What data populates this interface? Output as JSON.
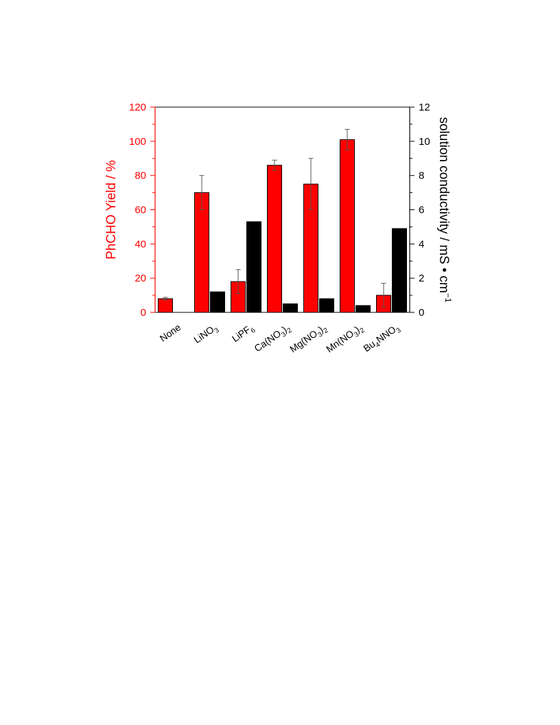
{
  "chart_data": {
    "type": "bar",
    "categories": [
      {
        "base": "None",
        "parts": [
          [
            "None",
            "n"
          ]
        ]
      },
      {
        "base": "LiNO3",
        "parts": [
          [
            "LiNO",
            "n"
          ],
          [
            "3",
            "sub"
          ]
        ]
      },
      {
        "base": "LiPF6",
        "parts": [
          [
            "LiPF",
            "n"
          ],
          [
            "6",
            "sub"
          ]
        ]
      },
      {
        "base": "Ca(NO3)2",
        "parts": [
          [
            "Ca(NO",
            "n"
          ],
          [
            "3",
            "sub"
          ],
          [
            ")",
            "n"
          ],
          [
            "2",
            "sub"
          ]
        ]
      },
      {
        "base": "Mg(NO3)2",
        "parts": [
          [
            "Mg(NO",
            "n"
          ],
          [
            "3",
            "sub"
          ],
          [
            ")",
            "n"
          ],
          [
            "2",
            "sub"
          ]
        ]
      },
      {
        "base": "Mn(NO3)2",
        "parts": [
          [
            "Mn(NO",
            "n"
          ],
          [
            "3",
            "sub"
          ],
          [
            ")",
            "n"
          ],
          [
            "2",
            "sub"
          ]
        ]
      },
      {
        "base": "Bu4NNO3",
        "parts": [
          [
            "Bu",
            "n"
          ],
          [
            "4",
            "sub"
          ],
          [
            "NNO",
            "n"
          ],
          [
            "3",
            "sub"
          ]
        ]
      }
    ],
    "series": [
      {
        "axis": "left",
        "color": "#ff0000",
        "values": [
          8,
          70,
          18,
          86,
          75,
          101,
          10
        ],
        "errors": [
          0.8,
          10,
          7,
          3,
          15,
          6,
          7
        ]
      },
      {
        "axis": "right",
        "color": "#000000",
        "values": [
          0,
          1.2,
          5.3,
          0.5,
          0.8,
          0.4,
          4.9
        ]
      }
    ],
    "ylabel_left": "PhCHO Yield / %",
    "ylabel_right": {
      "main": "solution conductivity / mS",
      "dot": "•",
      "unit": "cm",
      "sup": "−1"
    },
    "ylim_left": [
      0,
      120
    ],
    "ylim_right": [
      0,
      12
    ],
    "yticks_left": [
      0,
      20,
      40,
      60,
      80,
      100,
      120
    ],
    "yticks_right": [
      0,
      2,
      4,
      6,
      8,
      10,
      12
    ],
    "left_axis_color": "#ff0000",
    "right_axis_color": "#000000",
    "grid": false,
    "legend": "none"
  }
}
